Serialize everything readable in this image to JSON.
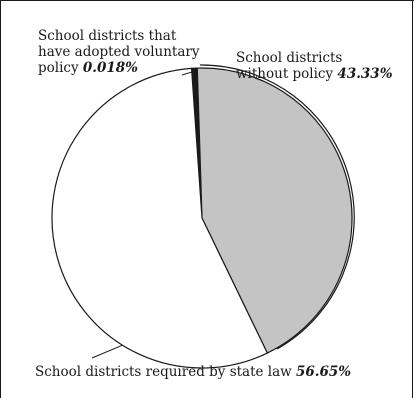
{
  "chart_data": {
    "type": "pie",
    "slices": [
      {
        "label_lines": [
          "School districts that",
          "have adopted voluntary",
          "policy"
        ],
        "value": 0.018,
        "value_text": "0.018%",
        "color": "#1a1a1a"
      },
      {
        "label_lines": [
          "School districts",
          "without policy"
        ],
        "value": 43.33,
        "value_text": "43.33%",
        "color": "#c4c4c4"
      },
      {
        "label_lines": [
          "School districts required by state law"
        ],
        "value": 56.65,
        "value_text": "56.65%",
        "color": "#ffffff"
      }
    ]
  }
}
